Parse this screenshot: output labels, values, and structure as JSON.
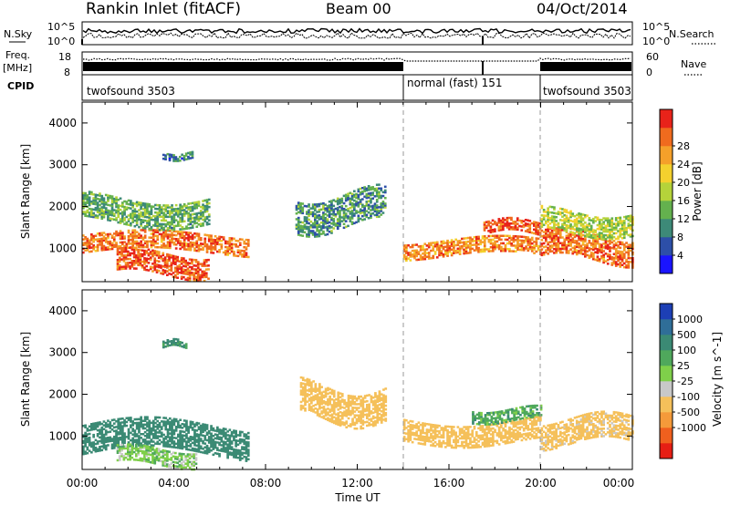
{
  "header": {
    "station": "Rankin Inlet (fitACF)",
    "beam": "Beam 00",
    "date": "04/Oct/2014"
  },
  "summary_panel": {
    "nsky_label": "N.Sky",
    "nsky_ticks": [
      "10^5",
      "10^0"
    ],
    "nsearch_label": "N.Search",
    "nsearch_ticks": [
      "10^5",
      "10^0"
    ],
    "freq_label": "Freq.",
    "freq_unit": "[MHz]",
    "freq_ticks": [
      "18",
      "8"
    ],
    "nave_label": "Nave",
    "nave_ticks": [
      "60",
      "0"
    ],
    "cpid_label": "CPID",
    "segments": [
      {
        "label": "twofsound 3503",
        "start_hour": 0,
        "end_hour": 14
      },
      {
        "label": "normal (fast) 151",
        "start_hour": 14,
        "end_hour": 20
      },
      {
        "label": "twofsound 3503",
        "start_hour": 20,
        "end_hour": 24
      }
    ]
  },
  "x_axis": {
    "label": "Time UT",
    "ticks": [
      "00:00",
      "04:00",
      "08:00",
      "12:00",
      "16:00",
      "20:00",
      "00:00"
    ]
  },
  "chart_data": [
    {
      "type": "heatmap",
      "panel": "power",
      "xlabel": "Time UT",
      "ylabel": "Slant Range [km]",
      "xlim": [
        0,
        24
      ],
      "ylim": [
        200,
        4500
      ],
      "y_ticks": [
        1000,
        2000,
        3000,
        4000
      ],
      "colorbar": {
        "label": "Power [dB]",
        "ticks": [
          "4",
          "8",
          "12",
          "16",
          "20",
          "24",
          "28"
        ],
        "colors": [
          "#1a14ff",
          "#2d4fa8",
          "#3d8a78",
          "#64b14e",
          "#b5d33a",
          "#f4d12e",
          "#f5a02a",
          "#f06b1e",
          "#e8231a"
        ]
      },
      "regions": [
        {
          "t": [
            0.0,
            7.2
          ],
          "r_center": 1100,
          "r_half_width": 220,
          "value": 26
        },
        {
          "t": [
            1.5,
            5.5
          ],
          "r_center": 600,
          "r_half_width": 250,
          "value": 28
        },
        {
          "t": [
            0.0,
            5.5
          ],
          "r_center": 1900,
          "r_half_width": 300,
          "value": 12
        },
        {
          "t": [
            3.5,
            4.8
          ],
          "r_center": 3200,
          "r_half_width": 80,
          "value": 8
        },
        {
          "t": [
            9.3,
            13.2
          ],
          "r_center": 1900,
          "r_half_width": 400,
          "value": 10
        },
        {
          "t": [
            14.0,
            20.0
          ],
          "r_center": 1000,
          "r_half_width": 200,
          "value": 25
        },
        {
          "t": [
            17.5,
            20.0
          ],
          "r_center": 1500,
          "r_half_width": 150,
          "value": 28
        },
        {
          "t": [
            20.0,
            24.0
          ],
          "r_center": 1000,
          "r_half_width": 300,
          "value": 26
        },
        {
          "t": [
            20.0,
            24.0
          ],
          "r_center": 1600,
          "r_half_width": 250,
          "value": 16
        }
      ]
    },
    {
      "type": "heatmap",
      "panel": "velocity",
      "xlabel": "Time UT",
      "ylabel": "Slant Range [km]",
      "xlim": [
        0,
        24
      ],
      "ylim": [
        200,
        4500
      ],
      "y_ticks": [
        1000,
        2000,
        3000,
        4000
      ],
      "colorbar": {
        "label": "Velocity [m s^-1]",
        "ticks": [
          "1000",
          "500",
          "100",
          "25",
          "-25",
          "-100",
          "-500",
          "-1000"
        ],
        "colors": [
          "#1d3fb5",
          "#2f6e98",
          "#3b8a74",
          "#4fa85c",
          "#7fcf4a",
          "#c8c8c8",
          "#f5c05a",
          "#f59a3a",
          "#f0601e",
          "#e61e14"
        ]
      },
      "regions": [
        {
          "t": [
            0.0,
            7.2
          ],
          "r_center": 900,
          "r_half_width": 350,
          "value": 300
        },
        {
          "t": [
            1.5,
            5.0
          ],
          "r_center": 500,
          "r_half_width": 200,
          "value": 0
        },
        {
          "t": [
            9.5,
            13.2
          ],
          "r_center": 1800,
          "r_half_width": 400,
          "value": -300
        },
        {
          "t": [
            14.0,
            20.0
          ],
          "r_center": 1100,
          "r_half_width": 250,
          "value": -300
        },
        {
          "t": [
            17.0,
            20.0
          ],
          "r_center": 1500,
          "r_half_width": 150,
          "value": 60
        },
        {
          "t": [
            20.0,
            24.0
          ],
          "r_center": 1100,
          "r_half_width": 300,
          "value": -200
        },
        {
          "t": [
            3.5,
            4.5
          ],
          "r_center": 3200,
          "r_half_width": 80,
          "value": 120
        }
      ]
    }
  ]
}
